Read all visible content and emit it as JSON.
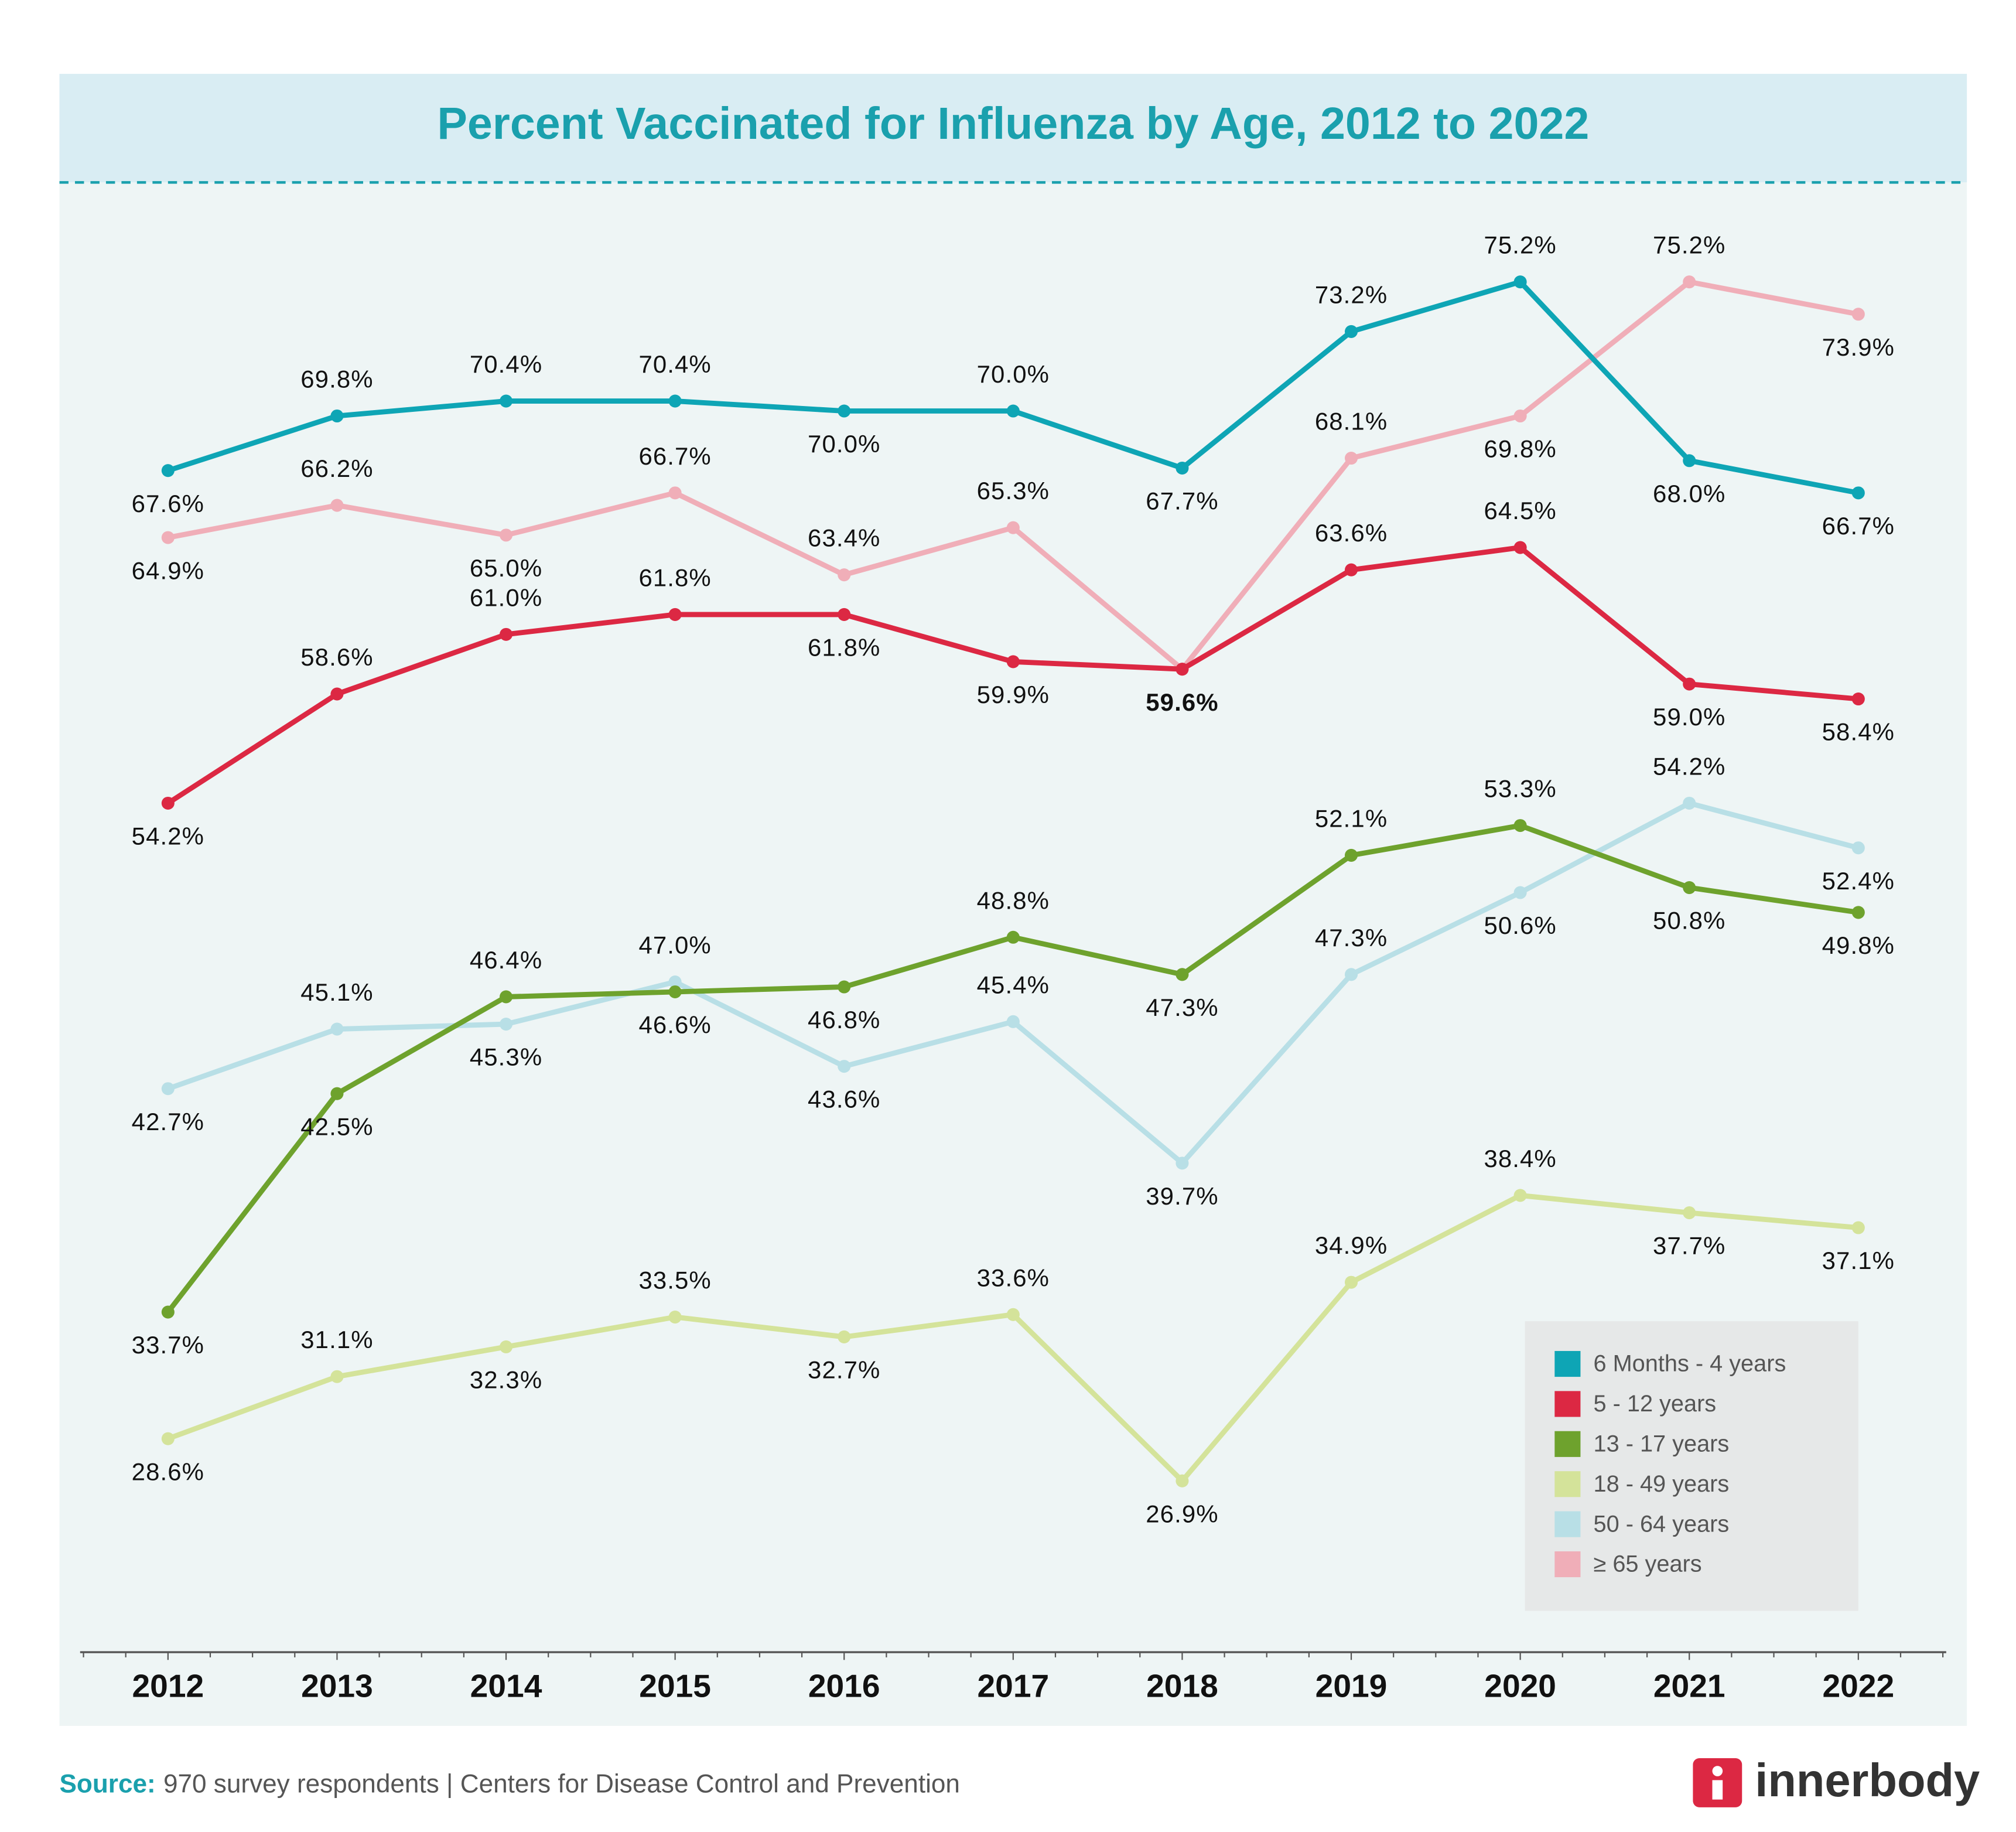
{
  "chart_data": {
    "type": "line",
    "title": "Percent Vaccinated for Influenza by Age, 2012 to 2022",
    "categories": [
      "2012",
      "2013",
      "2014",
      "2015",
      "2016",
      "2017",
      "2018",
      "2019",
      "2020",
      "2021",
      "2022"
    ],
    "ylim": [
      20,
      79
    ],
    "series": [
      {
        "name": "6 Months - 4 years",
        "color": "#0ea5b5",
        "values": [
          67.6,
          69.8,
          70.4,
          70.4,
          70.0,
          70.0,
          67.7,
          73.2,
          75.2,
          68.0,
          66.7
        ],
        "value_labels": [
          "67.6%",
          "69.8%",
          "70.4%",
          "70.4%",
          "70.0%",
          "70.0%",
          "67.7%",
          "73.2%",
          "75.2%",
          "68.0%",
          "66.7%"
        ]
      },
      {
        "name": "5 - 12 years",
        "color": "#dc2843",
        "values": [
          54.2,
          58.6,
          61.0,
          61.8,
          61.8,
          59.9,
          59.6,
          63.6,
          64.5,
          59.0,
          58.4
        ],
        "value_labels": [
          "54.2%",
          "58.6%",
          "61.0%",
          "61.8%",
          "61.8%",
          "59.9%",
          "59.6%",
          "63.6%",
          "64.5%",
          "59.0%",
          "58.4%"
        ]
      },
      {
        "name": "13 - 17 years",
        "color": "#6ea22d",
        "values": [
          33.7,
          42.5,
          46.4,
          46.6,
          46.8,
          48.8,
          47.3,
          52.1,
          53.3,
          50.8,
          49.8
        ],
        "value_labels": [
          "33.7%",
          "42.5%",
          "46.4%",
          "46.6%",
          "46.8%",
          "48.8%",
          "47.3%",
          "52.1%",
          "53.3%",
          "50.8%",
          "49.8%"
        ]
      },
      {
        "name": "18 - 49 years",
        "color": "#d4e39a",
        "values": [
          28.6,
          31.1,
          32.3,
          33.5,
          32.7,
          33.6,
          26.9,
          34.9,
          38.4,
          37.7,
          37.1
        ],
        "value_labels": [
          "28.6%",
          "31.1%",
          "32.3%",
          "33.5%",
          "32.7%",
          "33.6%",
          "26.9%",
          "34.9%",
          "38.4%",
          "37.7%",
          "37.1%"
        ]
      },
      {
        "name": "50 - 64 years",
        "color": "#b8dfe6",
        "values": [
          42.7,
          45.1,
          45.3,
          47.0,
          43.6,
          45.4,
          39.7,
          47.3,
          50.6,
          54.2,
          52.4
        ],
        "value_labels": [
          "42.7%",
          "45.1%",
          "45.3%",
          "47.0%",
          "43.6%",
          "45.4%",
          "39.7%",
          "47.3%",
          "50.6%",
          "54.2%",
          "52.4%"
        ]
      },
      {
        "name": "≥ 65 years",
        "color": "#f0aeb8",
        "values": [
          64.9,
          66.2,
          65.0,
          66.7,
          63.4,
          65.3,
          59.6,
          68.1,
          69.8,
          75.2,
          73.9
        ],
        "value_labels": [
          "64.9%",
          "66.2%",
          "65.0%",
          "66.7%",
          "63.4%",
          "65.3%",
          null,
          "68.1%",
          "69.8%",
          "75.2%",
          "73.9%"
        ]
      }
    ]
  },
  "footer": {
    "source_label": "Source:",
    "source_text": "970 survey respondents | Centers for Disease Control and Prevention",
    "logo": "innerbody"
  }
}
